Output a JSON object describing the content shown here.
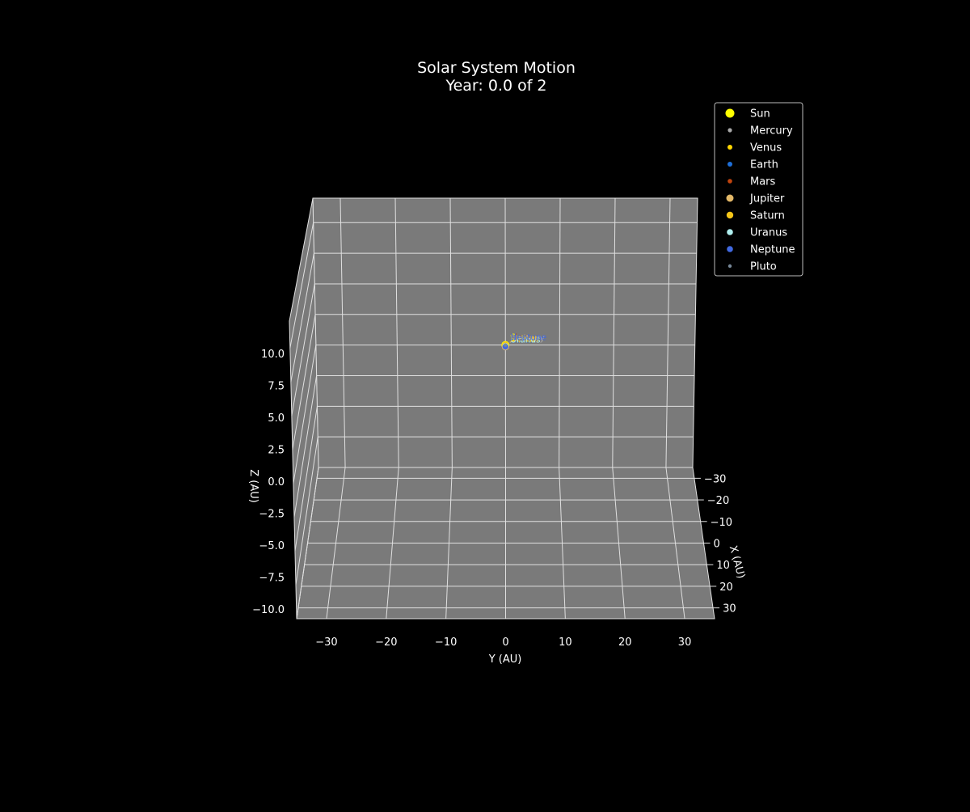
{
  "chart_data": {
    "type": "scatter",
    "projection": "3d",
    "title": "Solar System Motion",
    "subtitle": "Year: 0.0 of 2",
    "xlabel": "X (AU)",
    "ylabel": "Y (AU)",
    "zlabel": "Z (AU)",
    "xlim": [
      -35,
      35
    ],
    "ylim": [
      -35,
      35
    ],
    "zlim": [
      -10,
      12
    ],
    "x_ticks": [
      "30",
      "20",
      "10",
      "0",
      "10",
      "20",
      "30"
    ],
    "x_tick_values": [
      -30,
      -20,
      -10,
      0,
      10,
      20,
      30
    ],
    "y_ticks": [
      "30",
      "20",
      "10",
      "0",
      "10",
      "20",
      "30"
    ],
    "y_tick_values": [
      -30,
      -20,
      -10,
      0,
      10,
      20,
      30
    ],
    "z_ticks": [
      "10.0",
      "7.5",
      "5.0",
      "2.5",
      "0.0",
      "2.5",
      "5.0",
      "7.5",
      "10.0"
    ],
    "z_tick_values": [
      -10,
      -7.5,
      -5,
      -2.5,
      0,
      2.5,
      5,
      7.5,
      10
    ],
    "grid": true,
    "legend_position": "top-right",
    "colors": {
      "background": "#000000",
      "pane": "#7a7a7a",
      "grid": "#e0e0e0",
      "text": "#ffffff"
    },
    "series": [
      {
        "name": "Sun",
        "color": "#ffff00",
        "x": 0,
        "y": 0,
        "z": 0
      },
      {
        "name": "Mercury",
        "color": "#a9a9a9",
        "x": 0,
        "y": 0,
        "z": 0
      },
      {
        "name": "Venus",
        "color": "#ffd700",
        "x": 0,
        "y": 0,
        "z": 0
      },
      {
        "name": "Earth",
        "color": "#1e6fd9",
        "x": 0,
        "y": 0,
        "z": 0
      },
      {
        "name": "Mars",
        "color": "#c1440e",
        "x": 0,
        "y": 0,
        "z": 0
      },
      {
        "name": "Jupiter",
        "color": "#e3b868",
        "x": 0,
        "y": 0,
        "z": 0
      },
      {
        "name": "Saturn",
        "color": "#f5c518",
        "x": 0,
        "y": 0,
        "z": 0
      },
      {
        "name": "Uranus",
        "color": "#afeeee",
        "x": 0,
        "y": 0,
        "z": 0
      },
      {
        "name": "Neptune",
        "color": "#4169e1",
        "x": 0,
        "y": 0,
        "z": 0
      },
      {
        "name": "Pluto",
        "color": "#778899",
        "x": 0,
        "y": 0,
        "z": 0
      }
    ]
  }
}
